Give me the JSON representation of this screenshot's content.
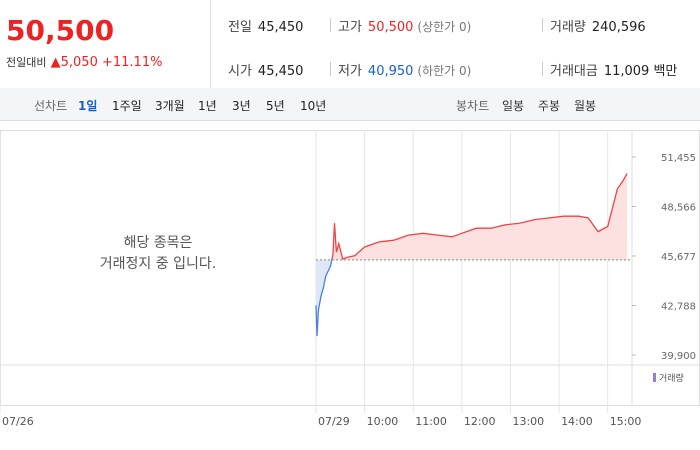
{
  "quote": {
    "price": "50,500",
    "change_label": "전일대비",
    "change": "5,050",
    "change_pct": "+11.11%",
    "stats": [
      [
        {
          "label": "전일",
          "value": "45,450"
        },
        {
          "label": "고가",
          "value": "50,500",
          "note": "(상한가 0)"
        },
        {
          "label": "거래량",
          "value": "240,596"
        }
      ],
      [
        {
          "label": "시가",
          "value": "45,450"
        },
        {
          "label": "저가",
          "value": "40,950",
          "note": "(하한가 0)"
        },
        {
          "label": "거래대금",
          "value": "11,009 백만"
        }
      ]
    ]
  },
  "tabs": {
    "line_label": "선차트",
    "line": [
      "1일",
      "1주일",
      "3개월",
      "1년",
      "3년",
      "5년",
      "10년"
    ],
    "candle_label": "봉차트",
    "candle": [
      "일봉",
      "주봉",
      "월봉"
    ]
  },
  "halt_notice": [
    "해당 종목은",
    "거래정지 중 입니다."
  ],
  "chart_data": {
    "type": "line",
    "volume_legend": "거래량",
    "baseline": 45450,
    "x": [
      9.0,
      9.02,
      9.05,
      9.1,
      9.15,
      9.2,
      9.25,
      9.3,
      9.35,
      9.38,
      9.42,
      9.47,
      9.55,
      9.65,
      9.8,
      10.0,
      10.3,
      10.6,
      10.9,
      11.2,
      11.5,
      11.8,
      12.0,
      12.3,
      12.6,
      12.9,
      13.2,
      13.5,
      13.8,
      14.1,
      14.4,
      14.6,
      14.8,
      15.0,
      15.1,
      15.2,
      15.3,
      15.4
    ],
    "series": [
      {
        "color": "#ee4444",
        "values": [
          42800,
          41000,
          42500,
          43300,
          43800,
          44500,
          44800,
          45100,
          45800,
          47600,
          45900,
          46400,
          45500,
          45600,
          45700,
          46200,
          46500,
          46600,
          46900,
          47000,
          46900,
          46800,
          47000,
          47300,
          47300,
          47500,
          47600,
          47800,
          47900,
          48000,
          48000,
          47900,
          47100,
          47400,
          48500,
          49600,
          50000,
          50500
        ]
      }
    ],
    "xlim": [
      2.5,
      15.5
    ],
    "ylim": [
      39316,
      53031
    ],
    "xticks": [
      {
        "value": 2.5,
        "label": "07/26"
      },
      {
        "value": 9,
        "label": "07/29"
      },
      {
        "value": 10,
        "label": "10:00"
      },
      {
        "value": 11,
        "label": "11:00"
      },
      {
        "value": 12,
        "label": "12:00"
      },
      {
        "value": 13,
        "label": "13:00"
      },
      {
        "value": 14,
        "label": "14:00"
      },
      {
        "value": 15,
        "label": "15:00"
      }
    ],
    "yticks": [
      {
        "value": 39900,
        "label": "39,900"
      },
      {
        "value": 42788,
        "label": "42,788"
      },
      {
        "value": 45677,
        "label": "45,677"
      },
      {
        "value": 48566,
        "label": "48,566"
      },
      {
        "value": 51455,
        "label": "51,455"
      }
    ]
  }
}
